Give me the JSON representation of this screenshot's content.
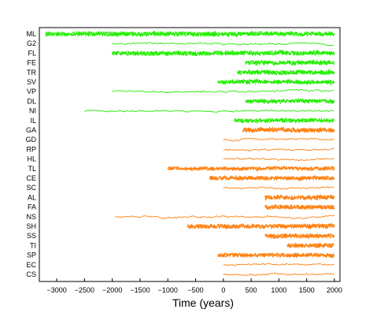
{
  "chart_data": {
    "type": "line",
    "title": "",
    "xlabel": "Time (years)",
    "ylabel": "",
    "xlim": [
      -3300,
      2050
    ],
    "xticks": [
      -3000,
      -2500,
      -2000,
      -1500,
      -1000,
      -500,
      0,
      500,
      1000,
      1500,
      2000
    ],
    "xtick_labels": [
      "−3000",
      "−2500",
      "−2000",
      "−1500",
      "−1000",
      "−500",
      "0",
      "500",
      "1000",
      "1500",
      "2000"
    ],
    "grid": false,
    "colors": {
      "group_1": "#22ee00",
      "group_2": "#ff7f0e"
    },
    "series": [
      {
        "name": "ML",
        "group": 1,
        "start": -3200,
        "end": 2000,
        "amp": 1.0,
        "dense": true
      },
      {
        "name": "G2",
        "group": 1,
        "start": -2000,
        "end": 2000,
        "amp": 0.45,
        "dense": false
      },
      {
        "name": "FL",
        "group": 1,
        "start": -2000,
        "end": 2000,
        "amp": 1.0,
        "dense": true
      },
      {
        "name": "FE",
        "group": 1,
        "start": 400,
        "end": 2000,
        "amp": 1.0,
        "dense": true
      },
      {
        "name": "TR",
        "group": 1,
        "start": 250,
        "end": 2000,
        "amp": 1.0,
        "dense": true
      },
      {
        "name": "SV",
        "group": 1,
        "start": -100,
        "end": 2000,
        "amp": 0.9,
        "dense": true
      },
      {
        "name": "VP",
        "group": 1,
        "start": -2000,
        "end": 2000,
        "amp": 0.5,
        "dense": false
      },
      {
        "name": "DL",
        "group": 1,
        "start": 400,
        "end": 2000,
        "amp": 0.9,
        "dense": true
      },
      {
        "name": "NI",
        "group": 1,
        "start": -2500,
        "end": 2000,
        "amp": 0.5,
        "dense": false
      },
      {
        "name": "IL",
        "group": 1,
        "start": 200,
        "end": 2000,
        "amp": 0.9,
        "dense": true
      },
      {
        "name": "GA",
        "group": 2,
        "start": 350,
        "end": 2000,
        "amp": 1.0,
        "dense": true
      },
      {
        "name": "GD",
        "group": 2,
        "start": 0,
        "end": 2000,
        "amp": 0.5,
        "dense": false
      },
      {
        "name": "RP",
        "group": 2,
        "start": 0,
        "end": 2000,
        "amp": 0.5,
        "dense": false
      },
      {
        "name": "HL",
        "group": 2,
        "start": 0,
        "end": 2000,
        "amp": 0.5,
        "dense": false
      },
      {
        "name": "TL",
        "group": 2,
        "start": -1000,
        "end": 2000,
        "amp": 0.8,
        "dense": true
      },
      {
        "name": "CE",
        "group": 2,
        "start": -250,
        "end": 2000,
        "amp": 0.9,
        "dense": true
      },
      {
        "name": "SC",
        "group": 2,
        "start": 0,
        "end": 2000,
        "amp": 0.5,
        "dense": false
      },
      {
        "name": "AL",
        "group": 2,
        "start": 750,
        "end": 2000,
        "amp": 1.0,
        "dense": true
      },
      {
        "name": "FA",
        "group": 2,
        "start": 750,
        "end": 2000,
        "amp": 1.0,
        "dense": true
      },
      {
        "name": "NS",
        "group": 2,
        "start": -1950,
        "end": 2000,
        "amp": 0.5,
        "dense": false
      },
      {
        "name": "SH",
        "group": 2,
        "start": -650,
        "end": 2000,
        "amp": 1.0,
        "dense": true
      },
      {
        "name": "SS",
        "group": 2,
        "start": 750,
        "end": 2000,
        "amp": 1.0,
        "dense": true
      },
      {
        "name": "TI",
        "group": 2,
        "start": 1150,
        "end": 2000,
        "amp": 1.0,
        "dense": true
      },
      {
        "name": "SP",
        "group": 2,
        "start": -100,
        "end": 2000,
        "amp": 0.9,
        "dense": true
      },
      {
        "name": "EC",
        "group": 2,
        "start": 0,
        "end": 2000,
        "amp": 0.5,
        "dense": false
      },
      {
        "name": "CS",
        "group": 2,
        "start": 0,
        "end": 2000,
        "amp": 0.5,
        "dense": false
      }
    ]
  }
}
